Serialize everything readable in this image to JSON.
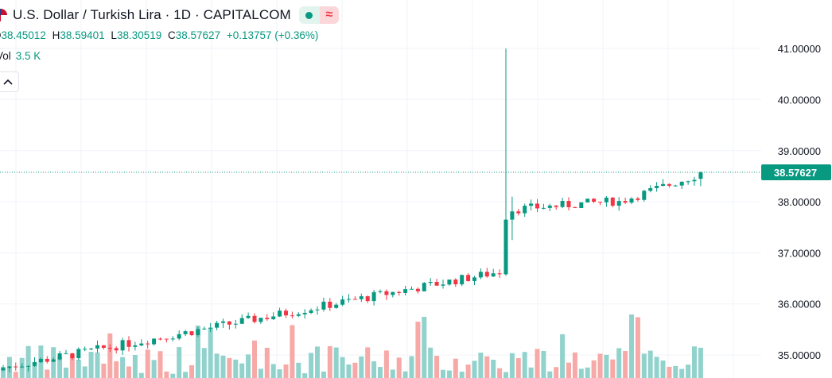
{
  "header": {
    "title": "U.S. Dollar / Turkish Lira · 1D · CAPITALCOM",
    "flag_icon": "usd-try-flag-icon",
    "status_icon": "market-open-dot-icon",
    "wave_icon": "wave-icon",
    "wave_glyph": "≈"
  },
  "ohlc": {
    "o_label": "O",
    "o_value": "38.45012",
    "h_label": "H",
    "h_value": "38.59401",
    "l_label": "L",
    "l_value": "38.30519",
    "c_label": "C",
    "c_value": "38.57627",
    "change": "+0.13757 (+0.36%)"
  },
  "volume": {
    "label": "Vol",
    "value": "3.5 K"
  },
  "collapse_icon": "chevron-up-icon",
  "colors": {
    "up": "#089981",
    "down": "#f23645",
    "up_volume": "#92d2cc",
    "down_volume": "#f7a9a7",
    "grid": "#f0f3fa",
    "last_price_line": "#089981"
  },
  "chart_data": {
    "type": "candlestick",
    "symbol": "U.S. Dollar / Turkish Lira",
    "interval": "1D",
    "source": "CAPITALCOM",
    "y_axis": {
      "ticks": [
        "35.00000",
        "36.00000",
        "37.00000",
        "38.00000",
        "39.00000",
        "40.00000",
        "41.00000"
      ],
      "ylim": [
        34.55,
        41.95
      ],
      "position": "right"
    },
    "last_price": "38.57627",
    "grid": true,
    "candles": [],
    "volume_bars": []
  }
}
